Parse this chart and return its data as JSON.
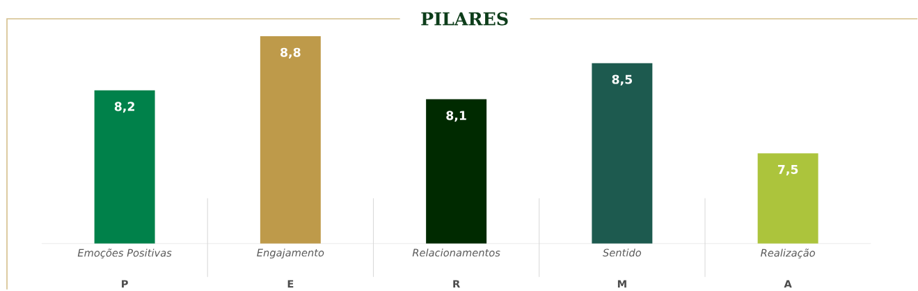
{
  "chart_data": {
    "type": "bar",
    "title": "PILARES",
    "categories": [
      "Emoções Positivas",
      "Engajamento",
      "Relacionamentos",
      "Sentido",
      "Realização"
    ],
    "values": [
      8.2,
      8.8,
      8.1,
      8.5,
      7.5
    ],
    "value_labels": [
      "8,2",
      "8,8",
      "8,1",
      "8,5",
      "7,5"
    ],
    "colors": [
      "#00814a",
      "#be9a4a",
      "#002a00",
      "#1d5a4f",
      "#acc43c"
    ],
    "ylim": [
      6.5,
      8.8
    ],
    "annotations": [
      "P",
      "E",
      "R",
      "M",
      "A"
    ]
  }
}
